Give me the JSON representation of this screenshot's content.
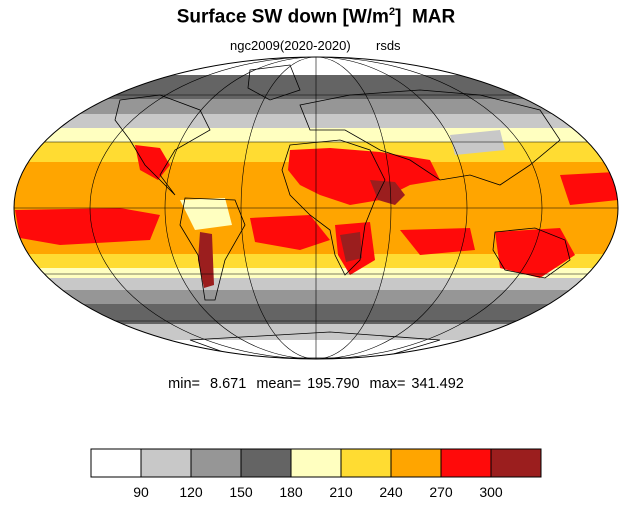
{
  "title": {
    "main": "Surface SW down [W/m",
    "sup": "2",
    "close": "]",
    "month": "MAR"
  },
  "subtitle": {
    "left": "ngc2009(2020-2020)",
    "right": "rsds"
  },
  "stats": {
    "min_label": "min=",
    "min_value": "8.671",
    "mean_label": "mean=",
    "mean_value": "195.790",
    "max_label": "max=",
    "max_value": "341.492"
  },
  "colorbar": {
    "colors": [
      "#ffffff",
      "#c8c8c8",
      "#969696",
      "#646464",
      "#ffffc0",
      "#ffdc32",
      "#ffa500",
      "#ff0a0a",
      "#9b1e1e"
    ],
    "tick_labels": [
      "90",
      "120",
      "150",
      "180",
      "210",
      "240",
      "270",
      "300"
    ]
  }
}
